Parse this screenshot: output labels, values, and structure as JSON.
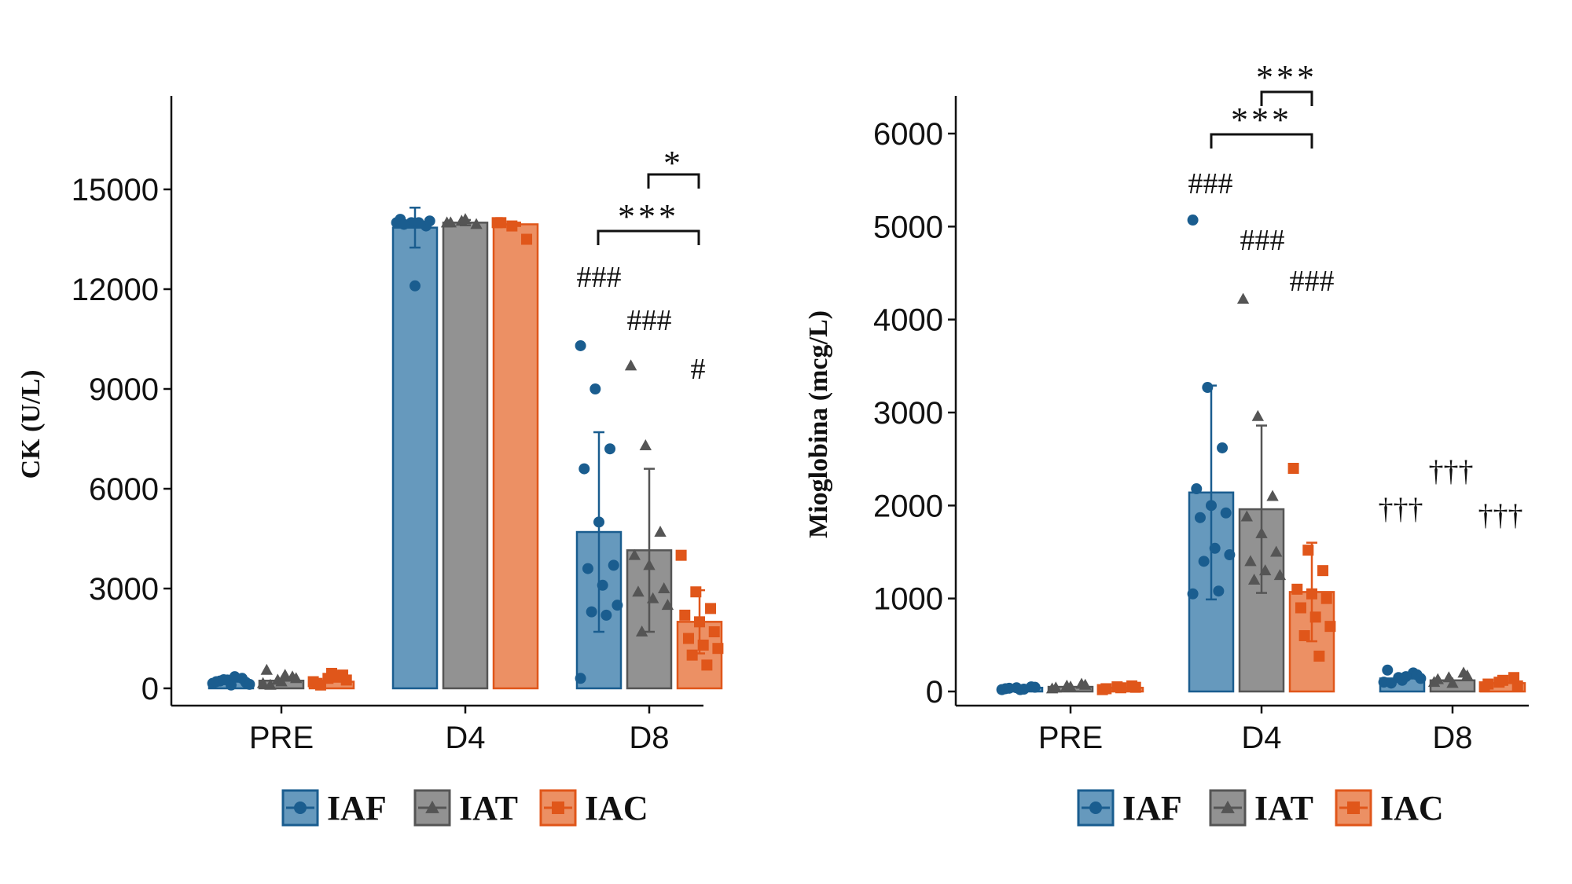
{
  "colors": {
    "IAF": "#1a5d8f",
    "IAT": "#555555",
    "IAC": "#e0561a",
    "IAF_fill": "#6699bd",
    "IAT_fill": "#929292",
    "IAC_fill": "#ec9064"
  },
  "chart_data": [
    {
      "type": "bar",
      "ylabel": "CK (U/L)",
      "xlabel": "",
      "categories": [
        "PRE",
        "D4",
        "D8"
      ],
      "ylim": [
        0,
        18000
      ],
      "yticks": [
        0,
        3000,
        6000,
        9000,
        12000,
        15000
      ],
      "yticklabels": [
        "0",
        "3000",
        "6000",
        "9000",
        "12000",
        "15000"
      ],
      "legend": {
        "position": "bottom",
        "entries": [
          "IAF",
          "IAT",
          "IAC"
        ]
      },
      "series": [
        {
          "name": "IAF",
          "marker": "circle",
          "values": [
            200,
            13850,
            4700
          ],
          "err": [
            0,
            600,
            3000
          ],
          "points": [
            [
              150,
              250,
              300,
              200,
              100,
              180,
              220,
              350,
              120,
              260
            ],
            [
              14000,
              14000,
              13900,
              14100,
              12100,
              14050,
              13950,
              14000
            ],
            [
              10300,
              9000,
              7200,
              6600,
              5000,
              3700,
              3600,
              3100,
              2500,
              2300,
              2200,
              300
            ]
          ]
        },
        {
          "name": "IAT",
          "marker": "triangle",
          "values": [
            230,
            14000,
            4150
          ],
          "err": [
            0,
            80,
            2450
          ],
          "points": [
            [
              150,
              250,
              350,
              550,
              200,
              300,
              100,
              400
            ],
            [
              14000,
              14050,
              13950,
              14000,
              14100
            ],
            [
              9700,
              7300,
              4700,
              4000,
              3700,
              3000,
              2900,
              2700,
              2500,
              1700
            ]
          ]
        },
        {
          "name": "IAC",
          "marker": "square",
          "values": [
            200,
            13950,
            2000
          ],
          "err": [
            0,
            50,
            950
          ],
          "points": [
            [
              200,
              300,
              400,
              150,
              450,
              250,
              100,
              350
            ],
            [
              14000,
              13900,
              13500,
              14000
            ],
            [
              4000,
              2900,
              2400,
              2200,
              2000,
              1700,
              1500,
              1300,
              1200,
              1000,
              700
            ]
          ]
        }
      ],
      "annotations": {
        "hash": [
          "###",
          "###",
          "#"
        ],
        "brackets": [
          {
            "label": "***",
            "from": "IAF",
            "to": "IAC",
            "group": "D8"
          },
          {
            "label": "*",
            "from": "IAT",
            "to": "IAC",
            "group": "D8"
          }
        ]
      }
    },
    {
      "type": "bar",
      "ylabel": "Mioglobina (mcg/L)",
      "xlabel": "",
      "categories": [
        "PRE",
        "D4",
        "D8"
      ],
      "ylim": [
        0,
        6400
      ],
      "yticks": [
        0,
        1000,
        2000,
        3000,
        4000,
        5000,
        6000
      ],
      "yticklabels": [
        "0",
        "1000",
        "2000",
        "3000",
        "4000",
        "5000",
        "6000"
      ],
      "legend": {
        "position": "bottom",
        "entries": [
          "IAF",
          "IAT",
          "IAC"
        ]
      },
      "series": [
        {
          "name": "IAF",
          "marker": "circle",
          "values": [
            40,
            2140,
            140
          ],
          "err": [
            0,
            1150,
            0
          ],
          "points": [
            [
              20,
              40,
              50,
              30,
              20,
              45,
              35,
              25
            ],
            [
              5070,
              3270,
              2620,
              2180,
              2000,
              1920,
              1870,
              1540,
              1470,
              1400,
              1080,
              1050
            ],
            [
              100,
              150,
              200,
              230,
              120,
              180,
              90,
              160,
              140
            ]
          ]
        },
        {
          "name": "IAT",
          "marker": "triangle",
          "values": [
            50,
            1960,
            120
          ],
          "err": [
            0,
            900,
            0
          ],
          "points": [
            [
              30,
              60,
              80,
              40,
              50,
              70
            ],
            [
              4220,
              2960,
              2100,
              1880,
              1700,
              1500,
              1400,
              1300,
              1250,
              1200
            ],
            [
              100,
              150,
              200,
              130,
              90,
              170
            ]
          ]
        },
        {
          "name": "IAC",
          "marker": "square",
          "values": [
            40,
            1070,
            90
          ],
          "err": [
            0,
            530,
            0
          ],
          "points": [
            [
              20,
              50,
              60,
              30,
              40,
              45
            ],
            [
              2400,
              1520,
              1300,
              1100,
              1050,
              1000,
              900,
              800,
              700,
              600,
              380
            ],
            [
              50,
              100,
              150,
              80,
              120,
              60
            ]
          ]
        }
      ],
      "annotations": {
        "hash": [
          "###",
          "###",
          "###"
        ],
        "dagger": [
          "†††",
          "†††",
          "†††"
        ],
        "brackets": [
          {
            "label": "***",
            "from": "IAF",
            "to": "IAC",
            "group": "D4"
          },
          {
            "label": "***",
            "from": "IAT",
            "to": "IAC",
            "group": "D4"
          }
        ]
      }
    }
  ]
}
